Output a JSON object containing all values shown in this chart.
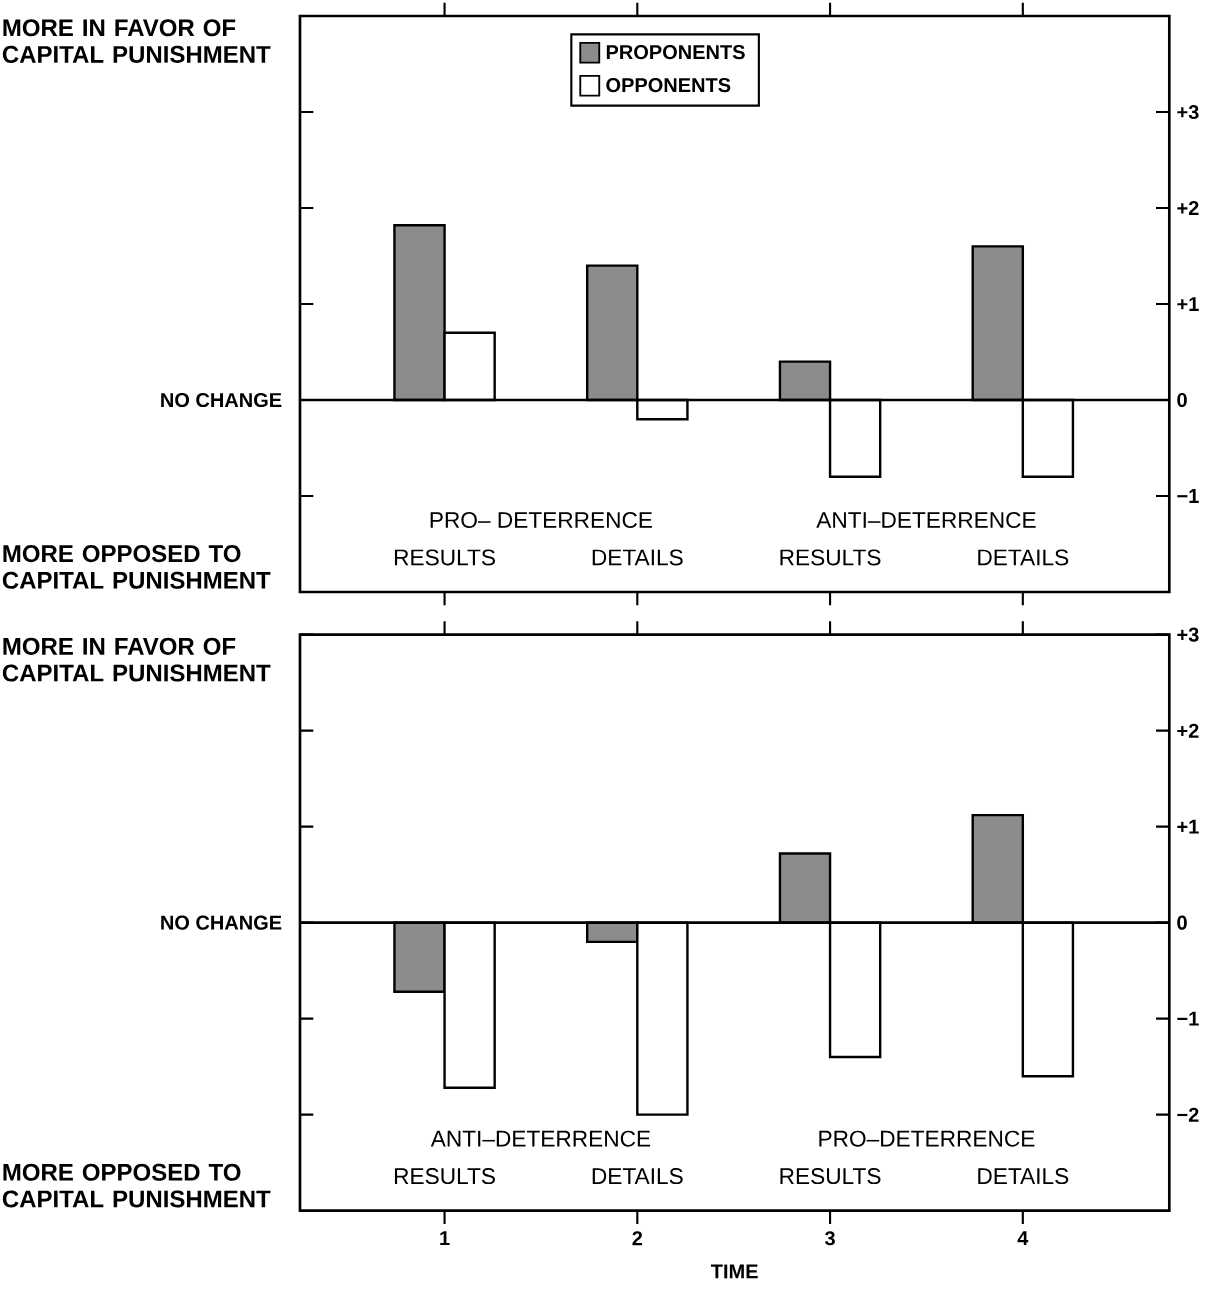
{
  "chart_data": [
    {
      "type": "bar",
      "categories": [
        null,
        null,
        null,
        null
      ],
      "series": [
        {
          "name": "PROPONENTS",
          "color": "#8c8c8c",
          "values": [
            1.82,
            1.4,
            0.4,
            1.6
          ]
        },
        {
          "name": "OPPONENTS",
          "color": "#ffffff",
          "values": [
            0.7,
            -0.2,
            -0.8,
            -0.8
          ]
        }
      ],
      "ylim": [
        -2,
        4
      ],
      "yticks": [
        {
          "value": -1,
          "label": "−1"
        },
        0,
        {
          "value": 1,
          "label": "+1"
        },
        {
          "value": 2,
          "label": "+2"
        },
        {
          "value": 3,
          "label": "+3"
        }
      ],
      "tick_labels": "y",
      "legend": "top",
      "grid": false,
      "ref_lines": [
        {
          "axis": "y",
          "value": 0,
          "label": "NO CHANGE"
        }
      ],
      "annotations": [
        "MORE IN FAVOR OF CAPITAL PUNISHMENT",
        "MORE OPPOSED TO CAPITAL PUNISHMENT",
        "PRO– DETERRENCE",
        "RESULTS",
        "DETAILS",
        "ANTI–DETERRENCE",
        "RESULTS",
        "DETAILS"
      ]
    },
    {
      "type": "bar",
      "categories": [
        "1",
        "2",
        "3",
        "4"
      ],
      "xlabel": "TIME",
      "series": [
        {
          "color": "#8c8c8c",
          "values": [
            -0.72,
            -0.2,
            0.72,
            1.12
          ]
        },
        {
          "color": "#ffffff",
          "values": [
            -1.72,
            -2.0,
            -1.4,
            -1.6
          ]
        }
      ],
      "ylim": [
        -3,
        3
      ],
      "yticks": [
        {
          "value": -2,
          "label": "−2"
        },
        {
          "value": -1,
          "label": "−1"
        },
        0,
        {
          "value": 1,
          "label": "+1"
        },
        {
          "value": 2,
          "label": "+2"
        },
        {
          "value": 3,
          "label": "+3"
        }
      ],
      "legend": false,
      "grid": false,
      "ref_lines": [
        {
          "axis": "y",
          "value": 0,
          "label": "NO CHANGE"
        }
      ],
      "annotations": [
        "MORE IN FAVOR OF CAPITAL PUNISHMENT",
        "MORE OPPOSED TO CAPITAL PUNISHMENT",
        "ANTI–DETERRENCE",
        "RESULTS",
        "DETAILS",
        "PRO–DETERRENCE",
        "RESULTS",
        "DETAILS"
      ]
    }
  ]
}
